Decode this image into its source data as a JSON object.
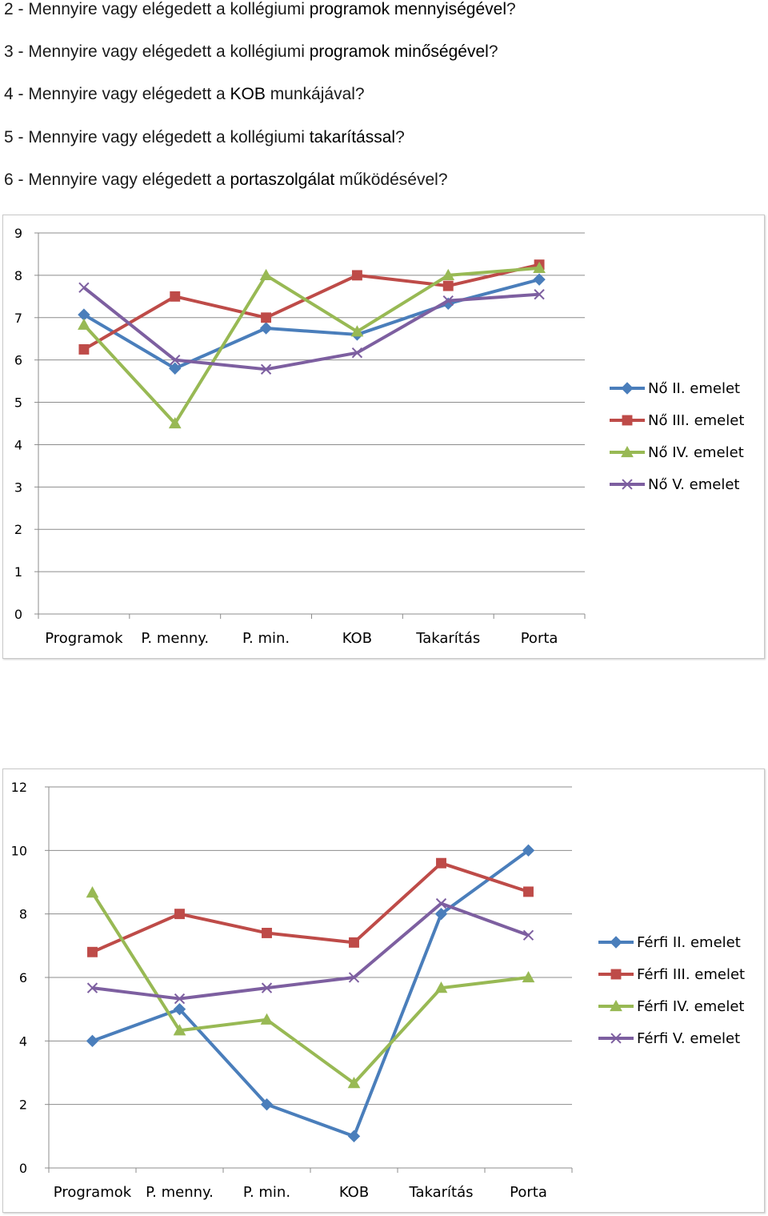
{
  "questions": [
    {
      "num": "2",
      "pre": "2 - Mennyire vagy elégedett a kollégiumi ",
      "bold": "programok mennyiségével",
      "post": "?"
    },
    {
      "num": "3",
      "pre": "3 - Mennyire vagy elégedett a kollégiumi ",
      "bold": "programok minőségével",
      "post": "?"
    },
    {
      "num": "4",
      "pre": "4 - Mennyire vagy elégedett a ",
      "bold": "KOB",
      "post": " munkájával?"
    },
    {
      "num": "5",
      "pre": "5 - Mennyire vagy elégedett a kollégiumi ",
      "bold": "takarítással",
      "post": "?"
    },
    {
      "num": "6",
      "pre": "6 - Mennyire vagy elégedett a ",
      "bold": "portaszolgálat",
      "post": " működésével?"
    }
  ],
  "chart_data": [
    {
      "type": "line",
      "categories": [
        "Programok",
        "P. menny.",
        "P. min.",
        "KOB",
        "Takarítás",
        "Porta"
      ],
      "ylim": [
        0,
        9
      ],
      "yticks": [
        0,
        1,
        2,
        3,
        4,
        5,
        6,
        7,
        8,
        9
      ],
      "grid": true,
      "legend": "right",
      "series": [
        {
          "name": "Nő II. emelet",
          "color": "#4a7ebb",
          "marker": "diamond",
          "values": [
            7.07,
            5.8,
            6.75,
            6.6,
            7.33,
            7.9
          ]
        },
        {
          "name": "Nő III. emelet",
          "color": "#be4b48",
          "marker": "square",
          "values": [
            6.25,
            7.5,
            7.0,
            8.0,
            7.75,
            8.25
          ]
        },
        {
          "name": "Nő IV. emelet",
          "color": "#98b954",
          "marker": "triangle",
          "values": [
            6.83,
            4.5,
            8.0,
            6.67,
            8.0,
            8.17
          ]
        },
        {
          "name": "Nő V. emelet",
          "color": "#7d5fa0",
          "marker": "x",
          "values": [
            7.71,
            6.0,
            5.78,
            6.17,
            7.4,
            7.55
          ]
        }
      ]
    },
    {
      "type": "line",
      "categories": [
        "Programok",
        "P. menny.",
        "P. min.",
        "KOB",
        "Takarítás",
        "Porta"
      ],
      "ylim": [
        0,
        12
      ],
      "yticks": [
        0,
        2,
        4,
        6,
        8,
        10,
        12
      ],
      "grid": true,
      "legend": "right",
      "series": [
        {
          "name": "Férfi II. emelet",
          "color": "#4a7ebb",
          "marker": "diamond",
          "values": [
            4,
            5,
            2,
            1,
            8,
            10
          ]
        },
        {
          "name": "Férfi III. emelet",
          "color": "#be4b48",
          "marker": "square",
          "values": [
            6.8,
            8.0,
            7.4,
            7.1,
            9.6,
            8.7
          ]
        },
        {
          "name": "Férfi IV. emelet",
          "color": "#98b954",
          "marker": "triangle",
          "values": [
            8.67,
            4.33,
            4.67,
            2.67,
            5.67,
            6.0
          ]
        },
        {
          "name": "Férfi V. emelet",
          "color": "#7d5fa0",
          "marker": "x",
          "values": [
            5.67,
            5.33,
            5.67,
            6.0,
            8.33,
            7.33
          ]
        }
      ]
    }
  ]
}
